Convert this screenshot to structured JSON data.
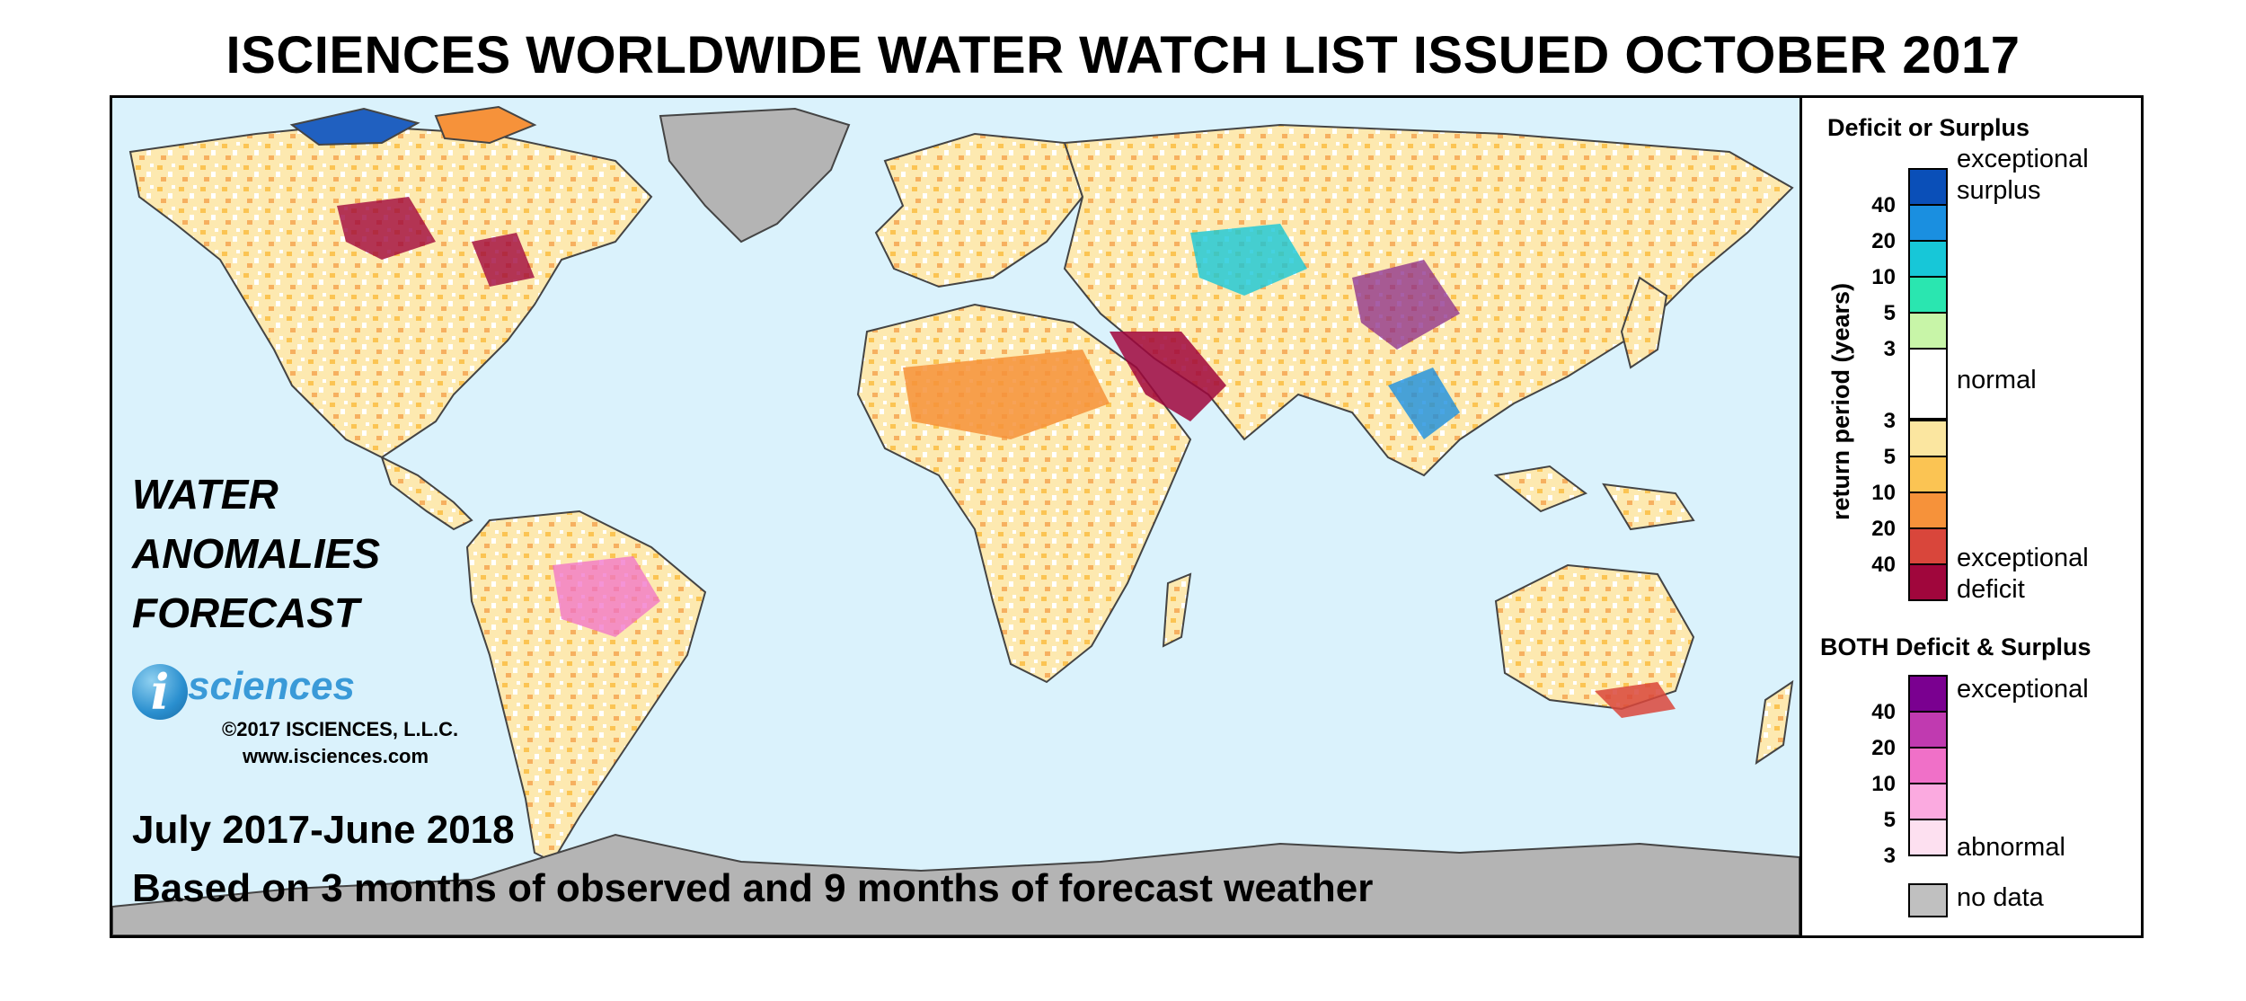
{
  "title": "ISCIENCES WORLDWIDE WATER WATCH LIST ISSUED OCTOBER 2017",
  "map": {
    "heading_lines": [
      "WATER",
      "ANOMALIES",
      "FORECAST"
    ],
    "logo_text": "sciences",
    "logo_letter": "i",
    "copyright": "©2017 ISCIENCES, L.L.C.",
    "website": "www.isciences.com",
    "period": "July 2017-June 2018",
    "basis": "Based on 3 months of observed and 9 months of forecast weather",
    "ocean_color": "#daf2fc",
    "land_color": "#fef0c0",
    "no_data_color": "#b4b4b4"
  },
  "legend": {
    "deficit_surplus_title": "Deficit or Surplus",
    "axis_label": "return period (years)",
    "exceptional_surplus_line1": "exceptional",
    "exceptional_surplus_line2": "surplus",
    "normal_label": "normal",
    "exceptional_deficit_line1": "exceptional",
    "exceptional_deficit_line2": "deficit",
    "surplus_ticks": [
      "40",
      "20",
      "10",
      "5",
      "3"
    ],
    "deficit_ticks": [
      "3",
      "5",
      "10",
      "20",
      "40"
    ],
    "surplus_colors": [
      "#0a4fb8",
      "#1a8fe0",
      "#17c7d8",
      "#2ae6b0",
      "#c8f5a8"
    ],
    "normal_color": "#ffffff",
    "deficit_colors": [
      "#fbe6a0",
      "#fbc453",
      "#f6923a",
      "#d9463b",
      "#a0063c"
    ],
    "both_title": "BOTH Deficit & Surplus",
    "both_exceptional": "exceptional",
    "both_abnormal": "abnormal",
    "both_ticks": [
      "40",
      "20",
      "10",
      "5",
      "3"
    ],
    "both_colors": [
      "#7a0090",
      "#c03ab0",
      "#f070c8",
      "#fbaae0",
      "#fde0f0"
    ],
    "no_data_label": "no data",
    "no_data_color": "#c0c0c0"
  }
}
